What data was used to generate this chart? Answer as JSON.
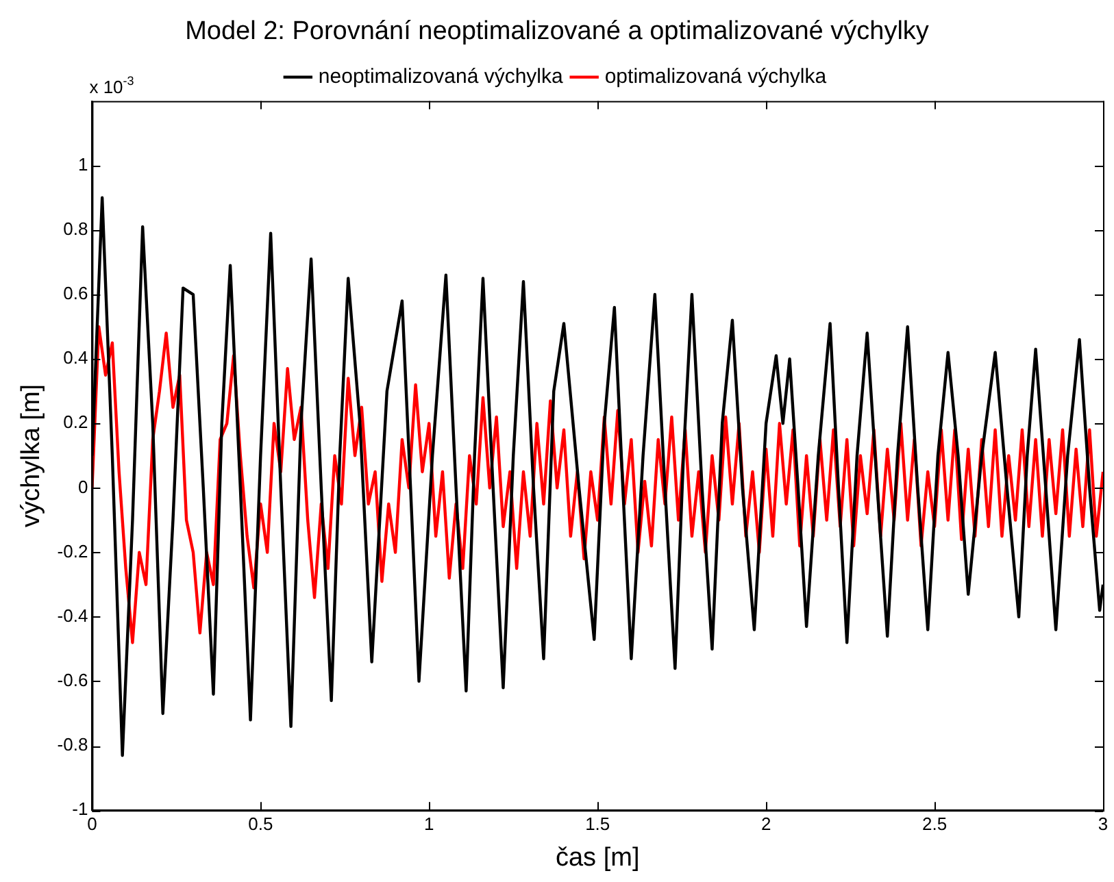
{
  "chart_data": {
    "type": "line",
    "title": "Model 2: Porovnání neoptimalizované a optimalizované výchylky",
    "xlabel": "čas [m]",
    "ylabel": "výchylka [m]",
    "annotations": [
      "x 10$^{-3}$"
    ],
    "xlim": [
      0,
      3
    ],
    "xticks": [
      0,
      0.5,
      1,
      1.5,
      2,
      2.5,
      3
    ],
    "ylim": [
      -1,
      1.2
    ],
    "yticks": [
      -1,
      -0.8,
      -0.6,
      -0.4,
      -0.2,
      0,
      0.2,
      0.4,
      0.6,
      0.8,
      1
    ],
    "grid": false,
    "legend": "top",
    "marker": "none",
    "line_style": "solid",
    "series": [
      {
        "name": "neoptimalizovaná výchylka",
        "color": "#000000",
        "x": [
          0,
          0.03,
          0.06,
          0.09,
          0.12,
          0.15,
          0.18,
          0.21,
          0.24,
          0.27,
          0.3,
          0.33,
          0.36,
          0.385,
          0.41,
          0.44,
          0.47,
          0.5,
          0.53,
          0.56,
          0.59,
          0.62,
          0.65,
          0.68,
          0.71,
          0.735,
          0.76,
          0.795,
          0.83,
          0.875,
          0.92,
          0.945,
          0.97,
          1.01,
          1.05,
          1.08,
          1.11,
          1.135,
          1.16,
          1.19,
          1.22,
          1.25,
          1.28,
          1.31,
          1.34,
          1.37,
          1.4,
          1.445,
          1.49,
          1.52,
          1.55,
          1.575,
          1.6,
          1.635,
          1.67,
          1.7,
          1.73,
          1.755,
          1.78,
          1.81,
          1.84,
          1.87,
          1.9,
          1.93,
          1.965,
          2,
          2.03,
          2.05,
          2.07,
          2.095,
          2.12,
          2.155,
          2.19,
          2.215,
          2.24,
          2.27,
          2.3,
          2.33,
          2.36,
          2.39,
          2.42,
          2.45,
          2.48,
          2.51,
          2.54,
          2.57,
          2.6,
          2.64,
          2.68,
          2.715,
          2.75,
          2.775,
          2.8,
          2.83,
          2.86,
          2.895,
          2.93,
          2.96,
          2.99,
          3
        ],
        "values": [
          0.1,
          0.9,
          0.1,
          -0.83,
          -0.1,
          0.81,
          0.2,
          -0.7,
          -0.1,
          0.62,
          0.6,
          0,
          -0.64,
          0.2,
          0.69,
          0,
          -0.72,
          0.1,
          0.79,
          0,
          -0.74,
          0.2,
          0.71,
          0,
          -0.66,
          0.1,
          0.65,
          0.2,
          -0.54,
          0.3,
          0.58,
          0,
          -0.6,
          0.1,
          0.66,
          0,
          -0.63,
          0.1,
          0.65,
          0,
          -0.62,
          0.1,
          0.64,
          0,
          -0.53,
          0.3,
          0.51,
          0,
          -0.47,
          0.2,
          0.56,
          0,
          -0.53,
          0.1,
          0.6,
          0,
          -0.56,
          0.1,
          0.6,
          0,
          -0.5,
          0.2,
          0.52,
          0,
          -0.44,
          0.2,
          0.41,
          0.2,
          0.4,
          0,
          -0.43,
          0.1,
          0.51,
          0,
          -0.48,
          0.1,
          0.48,
          0,
          -0.46,
          0.1,
          0.5,
          0,
          -0.44,
          0.1,
          0.42,
          0.1,
          -0.33,
          0.1,
          0.42,
          0,
          -0.4,
          0.1,
          0.43,
          0,
          -0.44,
          0.1,
          0.46,
          0,
          -0.38,
          -0.3
        ]
      },
      {
        "name": "optimalizovaná výchylka",
        "color": "#ff0000",
        "x": [
          0,
          0.02,
          0.04,
          0.06,
          0.08,
          0.1,
          0.12,
          0.14,
          0.16,
          0.18,
          0.2,
          0.22,
          0.24,
          0.26,
          0.28,
          0.3,
          0.32,
          0.34,
          0.36,
          0.38,
          0.4,
          0.42,
          0.44,
          0.46,
          0.48,
          0.5,
          0.52,
          0.54,
          0.56,
          0.58,
          0.6,
          0.62,
          0.64,
          0.66,
          0.68,
          0.7,
          0.72,
          0.74,
          0.76,
          0.78,
          0.8,
          0.82,
          0.84,
          0.86,
          0.88,
          0.9,
          0.92,
          0.94,
          0.96,
          0.98,
          1,
          1.02,
          1.04,
          1.06,
          1.08,
          1.1,
          1.12,
          1.14,
          1.16,
          1.18,
          1.2,
          1.22,
          1.24,
          1.26,
          1.28,
          1.3,
          1.32,
          1.34,
          1.36,
          1.38,
          1.4,
          1.42,
          1.44,
          1.46,
          1.48,
          1.5,
          1.52,
          1.54,
          1.56,
          1.58,
          1.6,
          1.62,
          1.64,
          1.66,
          1.68,
          1.7,
          1.72,
          1.74,
          1.76,
          1.78,
          1.8,
          1.82,
          1.84,
          1.86,
          1.88,
          1.9,
          1.92,
          1.94,
          1.96,
          1.98,
          2,
          2.02,
          2.04,
          2.06,
          2.08,
          2.1,
          2.12,
          2.14,
          2.16,
          2.18,
          2.2,
          2.22,
          2.24,
          2.26,
          2.28,
          2.3,
          2.32,
          2.34,
          2.36,
          2.38,
          2.4,
          2.42,
          2.44,
          2.46,
          2.48,
          2.5,
          2.52,
          2.54,
          2.56,
          2.58,
          2.6,
          2.62,
          2.64,
          2.66,
          2.68,
          2.7,
          2.72,
          2.74,
          2.76,
          2.78,
          2.8,
          2.82,
          2.84,
          2.86,
          2.88,
          2.9,
          2.92,
          2.94,
          2.96,
          2.98,
          3
        ],
        "values": [
          0,
          0.5,
          0.35,
          0.45,
          0.05,
          -0.25,
          -0.48,
          -0.2,
          -0.3,
          0.15,
          0.3,
          0.48,
          0.25,
          0.35,
          -0.1,
          -0.2,
          -0.45,
          -0.2,
          -0.3,
          0.15,
          0.2,
          0.41,
          0.1,
          -0.15,
          -0.31,
          -0.05,
          -0.2,
          0.2,
          0.05,
          0.37,
          0.15,
          0.25,
          -0.1,
          -0.34,
          -0.05,
          -0.25,
          0.1,
          -0.05,
          0.34,
          0.1,
          0.25,
          -0.05,
          0.05,
          -0.29,
          -0.05,
          -0.2,
          0.15,
          0,
          0.32,
          0.05,
          0.2,
          -0.15,
          0.05,
          -0.28,
          -0.05,
          -0.25,
          0.1,
          -0.05,
          0.28,
          0,
          0.22,
          -0.12,
          0.05,
          -0.25,
          0.05,
          -0.15,
          0.2,
          -0.05,
          0.27,
          0,
          0.18,
          -0.15,
          0.05,
          -0.22,
          0.05,
          -0.1,
          0.22,
          -0.05,
          0.24,
          -0.05,
          0.15,
          -0.2,
          0.02,
          -0.18,
          0.15,
          -0.05,
          0.22,
          -0.1,
          0.18,
          -0.15,
          0.05,
          -0.2,
          0.1,
          -0.1,
          0.22,
          -0.05,
          0.2,
          -0.15,
          0.05,
          -0.2,
          0.12,
          -0.15,
          0.2,
          -0.05,
          0.18,
          -0.18,
          0.1,
          -0.15,
          0.15,
          -0.1,
          0.18,
          -0.12,
          0.15,
          -0.18,
          0.1,
          -0.08,
          0.18,
          -0.15,
          0.12,
          -0.1,
          0.2,
          -0.1,
          0.15,
          -0.18,
          0.05,
          -0.12,
          0.18,
          -0.1,
          0.18,
          -0.16,
          0.12,
          -0.15,
          0.15,
          -0.12,
          0.18,
          -0.15,
          0.1,
          -0.1,
          0.18,
          -0.12,
          0.15,
          -0.15,
          0.15,
          -0.08,
          0.18,
          -0.15,
          0.12,
          -0.12,
          0.18,
          -0.15,
          0.05
        ]
      }
    ]
  }
}
